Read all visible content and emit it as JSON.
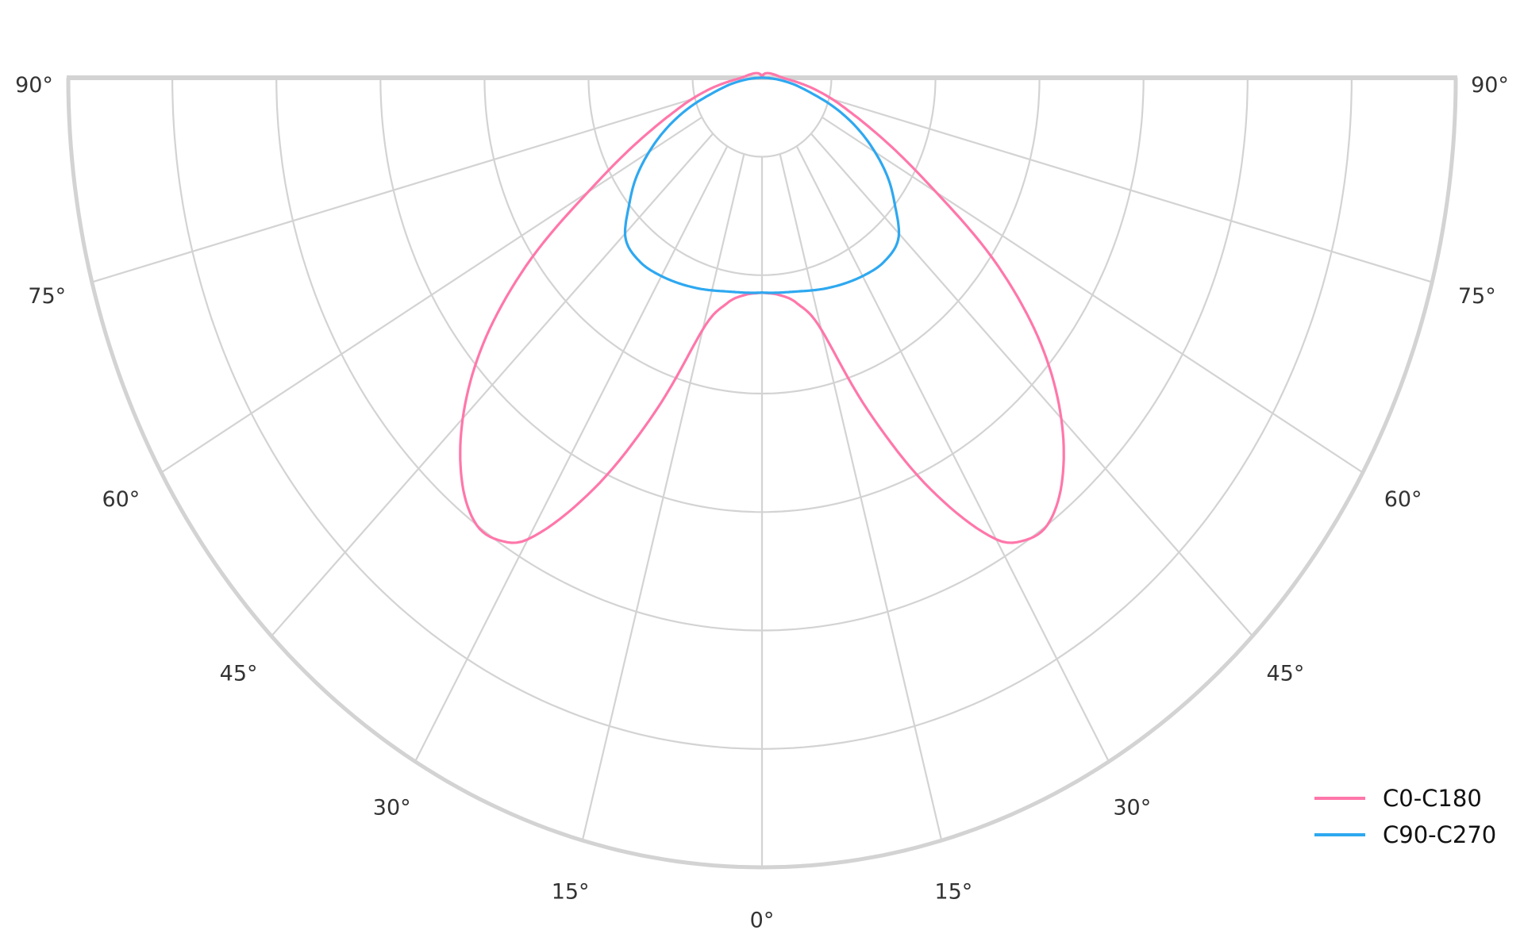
{
  "chart_data": {
    "type": "polar",
    "subtype": "luminous-intensity-distribution",
    "angle_range_deg": [
      -90,
      90
    ],
    "angle_zero": "bottom",
    "angle_ticks": [
      {
        "angle": -90,
        "label": "90°"
      },
      {
        "angle": -75,
        "label": "75°"
      },
      {
        "angle": -60,
        "label": "60°"
      },
      {
        "angle": -45,
        "label": "45°"
      },
      {
        "angle": -30,
        "label": "30°"
      },
      {
        "angle": -15,
        "label": "15°"
      },
      {
        "angle": 0,
        "label": "0°"
      },
      {
        "angle": 15,
        "label": "15°"
      },
      {
        "angle": 30,
        "label": "30°"
      },
      {
        "angle": 45,
        "label": "45°"
      },
      {
        "angle": 60,
        "label": "60°"
      },
      {
        "angle": 75,
        "label": "75°"
      },
      {
        "angle": 90,
        "label": "90°"
      }
    ],
    "radial_range": [
      0,
      1
    ],
    "radial_rings": [
      0.1,
      0.25,
      0.4,
      0.55,
      0.7,
      0.85,
      1.0
    ],
    "radial_labels_shown": false,
    "grid": true,
    "grid_color": "#d3d3d3",
    "legend_position": "bottom-right",
    "symmetric": true,
    "series": [
      {
        "name": "C0-C180",
        "color": "#ff77aa",
        "angles": [
          0,
          5,
          10,
          15,
          20,
          25,
          30,
          33,
          36,
          40,
          45,
          50,
          55,
          60,
          65,
          70,
          75,
          80,
          85,
          90,
          100,
          115,
          135,
          180
        ],
        "values": [
          0.272,
          0.276,
          0.29,
          0.33,
          0.45,
          0.575,
          0.675,
          0.698,
          0.7,
          0.672,
          0.61,
          0.525,
          0.415,
          0.29,
          0.205,
          0.145,
          0.105,
          0.072,
          0.045,
          0.03,
          0.02,
          0.013,
          0.008,
          0
        ]
      },
      {
        "name": "C90-C270",
        "color": "#2ea8f0",
        "angles": [
          0,
          10,
          20,
          30,
          37,
          44,
          50,
          55,
          60,
          65,
          70,
          75,
          80,
          85,
          90
        ],
        "values": [
          0.272,
          0.275,
          0.283,
          0.29,
          0.292,
          0.283,
          0.25,
          0.222,
          0.188,
          0.152,
          0.113,
          0.072,
          0.045,
          0.02,
          0
        ]
      }
    ]
  }
}
